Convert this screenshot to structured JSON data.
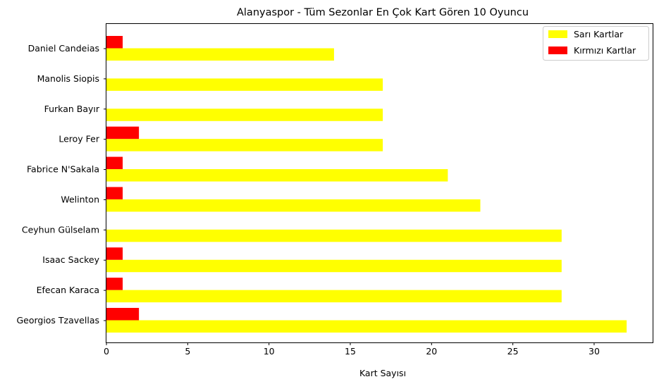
{
  "chart_data": {
    "type": "bar",
    "orientation": "horizontal",
    "title": "Alanyaspor - Tüm Sezonlar En Çok Kart Gören 10 Oyuncu",
    "xlabel": "Kart Sayısı",
    "ylabel": "",
    "xlim": [
      0,
      33.6
    ],
    "xticks": [
      0,
      5,
      10,
      15,
      20,
      25,
      30
    ],
    "grid": false,
    "legend_position": "top-right",
    "categories": [
      "Georgios Tzavellas",
      "Efecan Karaca",
      "Isaac Sackey",
      "Ceyhun Gülselam",
      "Welinton",
      "Fabrice N'Sakala",
      "Leroy Fer",
      "Furkan Bayır",
      "Manolis Siopis",
      "Daniel Candeias"
    ],
    "series": [
      {
        "name": "Sarı Kartlar",
        "color": "#ffff00",
        "values": [
          32,
          28,
          28,
          28,
          23,
          21,
          17,
          17,
          17,
          14
        ]
      },
      {
        "name": "Kırmızı Kartlar",
        "color": "#ff0000",
        "values": [
          2,
          1,
          1,
          0,
          1,
          1,
          2,
          0,
          0,
          1
        ]
      }
    ]
  }
}
